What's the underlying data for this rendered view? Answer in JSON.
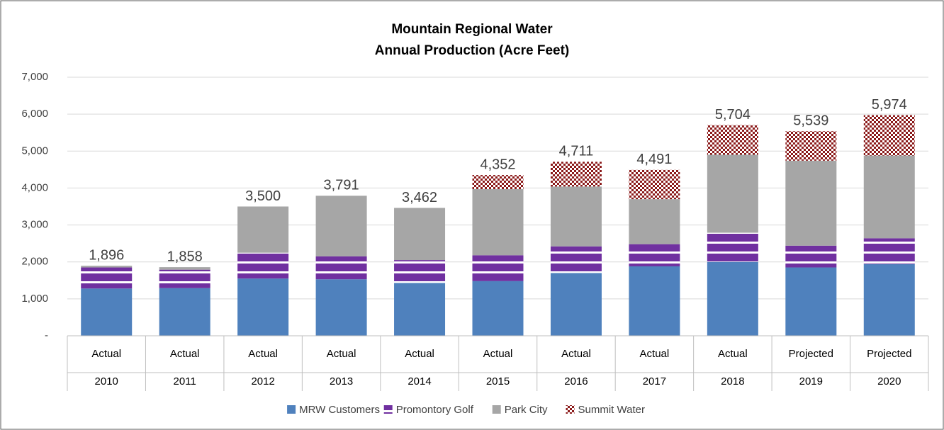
{
  "chart_data": {
    "type": "stacked_bar",
    "title": [
      "Mountain Regional Water",
      "Annual Production (Acre Feet)"
    ],
    "category_groups": [
      "Actual",
      "Actual",
      "Actual",
      "Actual",
      "Actual",
      "Actual",
      "Actual",
      "Actual",
      "Actual",
      "Projected",
      "Projected"
    ],
    "categories": [
      "2010",
      "2011",
      "2012",
      "2013",
      "2014",
      "2015",
      "2016",
      "2017",
      "2018",
      "2019",
      "2020"
    ],
    "series": [
      {
        "name": "MRW Customers",
        "color": "#4f81bd",
        "pattern": "solid",
        "values": [
          1280,
          1290,
          1550,
          1530,
          1430,
          1480,
          1700,
          1880,
          2000,
          1850,
          1940
        ]
      },
      {
        "name": "Promontory Golf",
        "color": "#7030a0",
        "pattern": "stripes",
        "values": [
          570,
          500,
          700,
          620,
          620,
          700,
          720,
          600,
          790,
          590,
          700
        ]
      },
      {
        "name": "Park City",
        "color": "#a6a6a6",
        "pattern": "solid",
        "values": [
          46,
          68,
          1250,
          1641,
          1412,
          1790,
          1620,
          1220,
          2110,
          2300,
          2240
        ]
      },
      {
        "name": "Summit Water",
        "color": "#8b1a1a",
        "pattern": "checker",
        "values": [
          0,
          0,
          0,
          0,
          0,
          382,
          671,
          791,
          804,
          799,
          1094
        ]
      }
    ],
    "totals": {
      "values": [
        1896,
        1858,
        3500,
        3791,
        3462,
        4352,
        4711,
        4491,
        5704,
        5539,
        5974
      ],
      "value_labels": [
        "1,896",
        "1,858",
        "3,500",
        "3,791",
        "3,462",
        "4,352",
        "4,711",
        "4,491",
        "5,704",
        "5,539",
        "5,974"
      ]
    },
    "ylim": [
      0,
      7000
    ],
    "yticks": [
      {
        "value": 0,
        "label": "-"
      },
      {
        "value": 1000,
        "label": "1,000"
      },
      {
        "value": 2000,
        "label": "2,000"
      },
      {
        "value": 3000,
        "label": "3,000"
      },
      {
        "value": 4000,
        "label": "4,000"
      },
      {
        "value": 5000,
        "label": "5,000"
      },
      {
        "value": 6000,
        "label": "6,000"
      },
      {
        "value": 7000,
        "label": "7,000"
      }
    ],
    "grid": true,
    "legend": "bottom"
  }
}
